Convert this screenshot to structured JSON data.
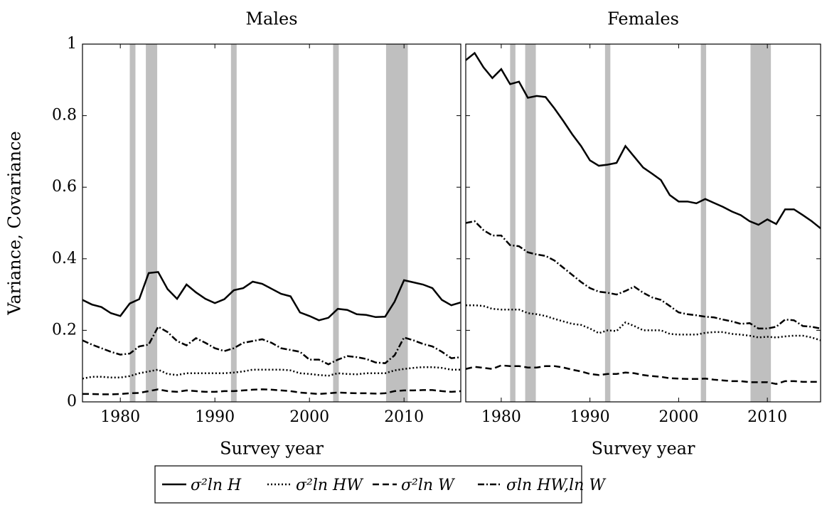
{
  "chart_data": [
    {
      "type": "line",
      "title": "Males",
      "ylabel": "Variance, Covariance",
      "xlabel": "Survey year",
      "xlim": [
        1976,
        2016
      ],
      "xticks": [
        1980,
        1990,
        2000,
        2010
      ],
      "ylim": [
        0,
        1
      ],
      "yticks": [
        0,
        0.2,
        0.4,
        0.6,
        0.8,
        1
      ],
      "shaded": [
        [
          1981,
          1981.6
        ],
        [
          1982.7,
          1983.9
        ],
        [
          1991.7,
          1992.3
        ],
        [
          2002.5,
          2003.1
        ],
        [
          2008.1,
          2010.4
        ]
      ],
      "shade_color": "#bfbfbf",
      "x": [
        1976,
        1977,
        1978,
        1979,
        1980,
        1981,
        1982,
        1983,
        1984,
        1985,
        1986,
        1987,
        1988,
        1989,
        1990,
        1991,
        1992,
        1993,
        1994,
        1995,
        1996,
        1997,
        1998,
        1999,
        2000,
        2001,
        2002,
        2003,
        2004,
        2005,
        2006,
        2007,
        2008,
        2009,
        2010,
        2011,
        2012,
        2013,
        2014,
        2015,
        2016
      ],
      "series": [
        {
          "name": "σ²ln H",
          "color": "#000000",
          "dash": "solid",
          "values": [
            0.285,
            0.272,
            0.265,
            0.248,
            0.24,
            0.275,
            0.287,
            0.36,
            0.363,
            0.315,
            0.288,
            0.328,
            0.306,
            0.288,
            0.276,
            0.287,
            0.312,
            0.318,
            0.336,
            0.33,
            0.316,
            0.302,
            0.295,
            0.25,
            0.24,
            0.228,
            0.235,
            0.26,
            0.257,
            0.245,
            0.243,
            0.237,
            0.238,
            0.28,
            0.34,
            0.334,
            0.328,
            0.318,
            0.285,
            0.27,
            0.278
          ]
        },
        {
          "name": "σ²ln HW",
          "color": "#000000",
          "dash": "dotted",
          "values": [
            0.065,
            0.07,
            0.07,
            0.068,
            0.068,
            0.072,
            0.08,
            0.085,
            0.09,
            0.078,
            0.075,
            0.08,
            0.08,
            0.08,
            0.08,
            0.08,
            0.082,
            0.085,
            0.09,
            0.09,
            0.09,
            0.09,
            0.088,
            0.08,
            0.078,
            0.075,
            0.073,
            0.08,
            0.078,
            0.077,
            0.08,
            0.08,
            0.08,
            0.088,
            0.092,
            0.095,
            0.097,
            0.097,
            0.095,
            0.09,
            0.09
          ]
        },
        {
          "name": "σ²ln W",
          "color": "#000000",
          "dash": "dashed",
          "values": [
            0.022,
            0.022,
            0.021,
            0.021,
            0.022,
            0.024,
            0.025,
            0.03,
            0.035,
            0.03,
            0.028,
            0.032,
            0.03,
            0.028,
            0.028,
            0.03,
            0.03,
            0.032,
            0.034,
            0.035,
            0.034,
            0.032,
            0.03,
            0.026,
            0.024,
            0.022,
            0.024,
            0.026,
            0.025,
            0.024,
            0.024,
            0.023,
            0.024,
            0.03,
            0.032,
            0.032,
            0.033,
            0.033,
            0.03,
            0.028,
            0.03
          ]
        },
        {
          "name": "σln HW,ln W",
          "color": "#000000",
          "dash": "dashdot",
          "values": [
            0.172,
            0.16,
            0.15,
            0.14,
            0.132,
            0.135,
            0.155,
            0.16,
            0.21,
            0.195,
            0.17,
            0.158,
            0.178,
            0.165,
            0.15,
            0.142,
            0.15,
            0.165,
            0.17,
            0.175,
            0.165,
            0.15,
            0.145,
            0.14,
            0.118,
            0.118,
            0.105,
            0.118,
            0.128,
            0.125,
            0.12,
            0.11,
            0.108,
            0.13,
            0.18,
            0.172,
            0.162,
            0.155,
            0.14,
            0.122,
            0.125
          ]
        }
      ]
    },
    {
      "type": "line",
      "title": "Females",
      "xlabel": "Survey year",
      "xlim": [
        1976,
        2016
      ],
      "xticks": [
        1980,
        1990,
        2000,
        2010
      ],
      "ylim": [
        0,
        1
      ],
      "yticks": [
        0,
        0.2,
        0.4,
        0.6,
        0.8,
        1
      ],
      "shaded": [
        [
          1981,
          1981.6
        ],
        [
          1982.7,
          1983.9
        ],
        [
          1991.7,
          1992.3
        ],
        [
          2002.5,
          2003.1
        ],
        [
          2008.1,
          2010.4
        ]
      ],
      "shade_color": "#bfbfbf",
      "x": [
        1976,
        1977,
        1978,
        1979,
        1980,
        1981,
        1982,
        1983,
        1984,
        1985,
        1986,
        1987,
        1988,
        1989,
        1990,
        1991,
        1992,
        1993,
        1994,
        1995,
        1996,
        1997,
        1998,
        1999,
        2000,
        2001,
        2002,
        2003,
        2004,
        2005,
        2006,
        2007,
        2008,
        2009,
        2010,
        2011,
        2012,
        2013,
        2014,
        2015,
        2016
      ],
      "series": [
        {
          "color": "#000000",
          "dash": "solid",
          "values": [
            0.955,
            0.975,
            0.935,
            0.905,
            0.93,
            0.888,
            0.895,
            0.85,
            0.855,
            0.852,
            0.82,
            0.785,
            0.748,
            0.715,
            0.675,
            0.66,
            0.663,
            0.668,
            0.715,
            0.685,
            0.655,
            0.638,
            0.62,
            0.578,
            0.56,
            0.56,
            0.555,
            0.567,
            0.556,
            0.545,
            0.532,
            0.522,
            0.505,
            0.495,
            0.51,
            0.497,
            0.538,
            0.538,
            0.522,
            0.505,
            0.485
          ]
        },
        {
          "color": "#000000",
          "dash": "dotted",
          "values": [
            0.27,
            0.27,
            0.268,
            0.26,
            0.258,
            0.258,
            0.258,
            0.248,
            0.245,
            0.24,
            0.232,
            0.225,
            0.218,
            0.215,
            0.205,
            0.192,
            0.2,
            0.198,
            0.222,
            0.212,
            0.2,
            0.2,
            0.2,
            0.19,
            0.188,
            0.188,
            0.188,
            0.193,
            0.195,
            0.195,
            0.19,
            0.188,
            0.185,
            0.18,
            0.182,
            0.18,
            0.183,
            0.185,
            0.185,
            0.18,
            0.172
          ]
        },
        {
          "color": "#000000",
          "dash": "dashed",
          "values": [
            0.092,
            0.098,
            0.095,
            0.092,
            0.102,
            0.1,
            0.1,
            0.096,
            0.096,
            0.1,
            0.1,
            0.096,
            0.09,
            0.085,
            0.078,
            0.075,
            0.078,
            0.078,
            0.082,
            0.08,
            0.075,
            0.072,
            0.07,
            0.066,
            0.065,
            0.064,
            0.064,
            0.065,
            0.062,
            0.06,
            0.058,
            0.058,
            0.055,
            0.055,
            0.055,
            0.05,
            0.058,
            0.058,
            0.056,
            0.056,
            0.056
          ]
        },
        {
          "color": "#000000",
          "dash": "dashdot",
          "values": [
            0.5,
            0.505,
            0.48,
            0.465,
            0.465,
            0.438,
            0.435,
            0.418,
            0.412,
            0.408,
            0.395,
            0.375,
            0.355,
            0.335,
            0.318,
            0.308,
            0.305,
            0.3,
            0.31,
            0.322,
            0.305,
            0.292,
            0.285,
            0.268,
            0.25,
            0.245,
            0.242,
            0.238,
            0.236,
            0.23,
            0.225,
            0.218,
            0.22,
            0.205,
            0.205,
            0.21,
            0.23,
            0.228,
            0.212,
            0.21,
            0.205
          ]
        }
      ]
    }
  ]
}
